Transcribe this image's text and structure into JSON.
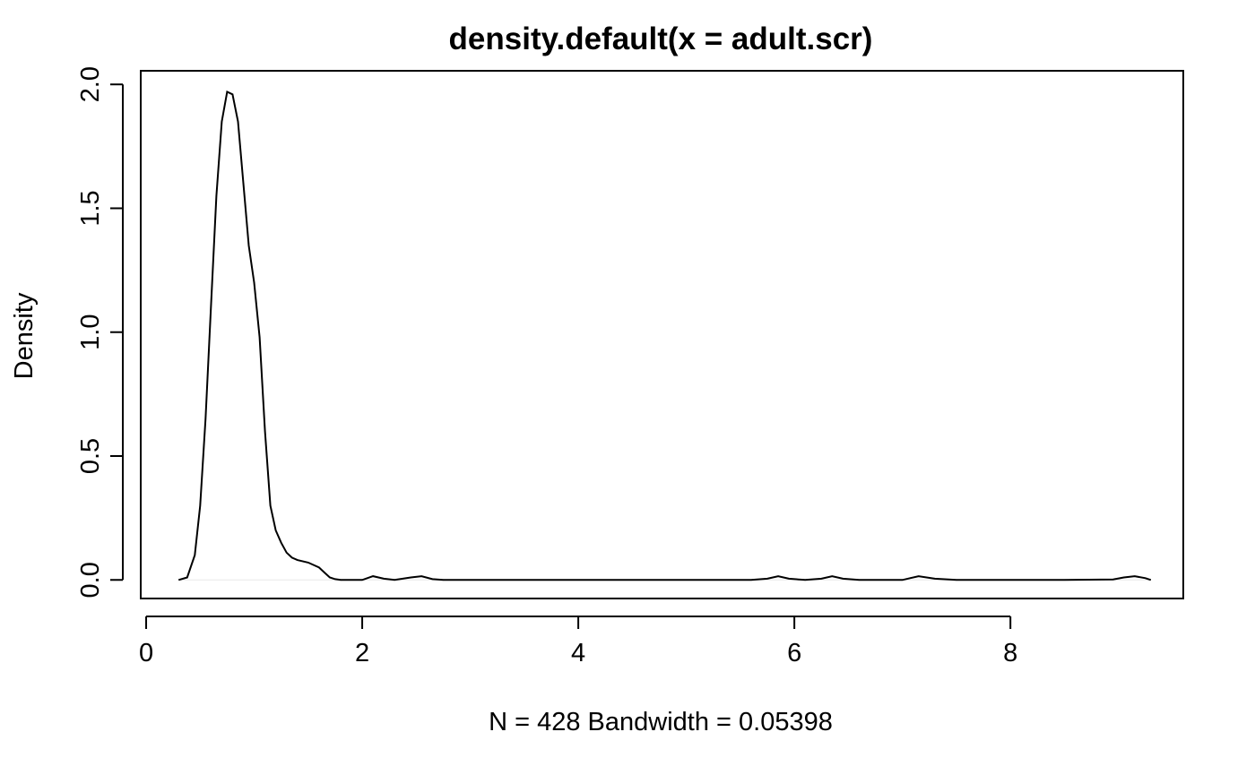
{
  "chart_data": {
    "type": "line",
    "title": "density.default(x = adult.scr)",
    "xlabel": "N = 428   Bandwidth = 0.05398",
    "ylabel": "Density",
    "xlim": [
      -0.05,
      9.6
    ],
    "ylim": [
      -0.075,
      2.055
    ],
    "x_ticks": [
      0,
      2,
      4,
      6,
      8
    ],
    "y_ticks": [
      0.0,
      0.5,
      1.0,
      1.5,
      2.0
    ],
    "x_tick_labels": [
      "0",
      "2",
      "4",
      "6",
      "8"
    ],
    "y_tick_labels": [
      "0.0",
      "0.5",
      "1.0",
      "1.5",
      "2.0"
    ],
    "grid": false,
    "baseline": 0,
    "series": [
      {
        "color": "#000000",
        "x": [
          0.3,
          0.38,
          0.45,
          0.5,
          0.55,
          0.6,
          0.65,
          0.7,
          0.75,
          0.8,
          0.85,
          0.9,
          0.95,
          1.0,
          1.05,
          1.1,
          1.15,
          1.2,
          1.25,
          1.3,
          1.35,
          1.4,
          1.5,
          1.6,
          1.65,
          1.7,
          1.75,
          1.8,
          1.9,
          2.0,
          2.1,
          2.2,
          2.3,
          2.45,
          2.55,
          2.65,
          2.75,
          3.0,
          4.0,
          5.0,
          5.6,
          5.75,
          5.85,
          5.95,
          6.1,
          6.25,
          6.35,
          6.45,
          6.6,
          7.0,
          7.15,
          7.3,
          7.5,
          8.5,
          8.95,
          9.05,
          9.15,
          9.25,
          9.3
        ],
        "y": [
          0.0,
          0.01,
          0.1,
          0.3,
          0.65,
          1.1,
          1.55,
          1.85,
          1.97,
          1.96,
          1.85,
          1.6,
          1.35,
          1.2,
          0.98,
          0.6,
          0.3,
          0.2,
          0.15,
          0.11,
          0.09,
          0.08,
          0.07,
          0.05,
          0.03,
          0.01,
          0.003,
          0.0,
          0.0,
          0.0,
          0.015,
          0.005,
          0.0,
          0.01,
          0.015,
          0.003,
          0.0,
          0.0,
          0.0,
          0.0,
          0.0,
          0.005,
          0.015,
          0.005,
          0.0,
          0.005,
          0.015,
          0.005,
          0.0,
          0.0,
          0.015,
          0.005,
          0.0,
          0.0,
          0.002,
          0.01,
          0.015,
          0.007,
          0.0
        ]
      }
    ]
  }
}
